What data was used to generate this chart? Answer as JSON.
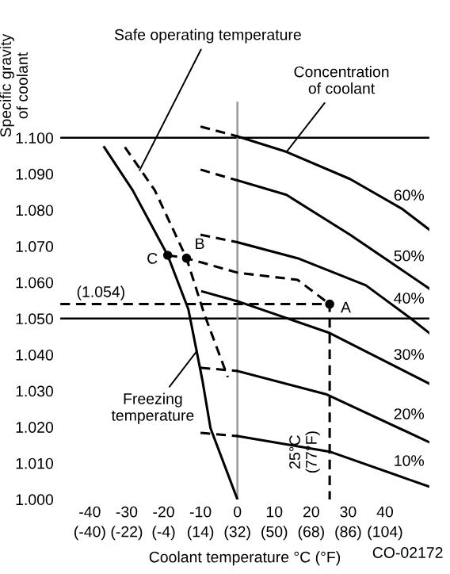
{
  "chart_data": {
    "type": "line",
    "xlabel": "Coolant temperature °C (°F)",
    "ylabel": "Specific gravity\nof coolant",
    "xlim": [
      -48,
      52
    ],
    "ylim": [
      1.0,
      1.11
    ],
    "xticks": [
      -40,
      -30,
      -20,
      -10,
      0,
      10,
      20,
      30,
      40
    ],
    "x2lim": [
      -54.4,
      125.6
    ],
    "x2ticks": [
      {
        "value": -40,
        "label": "(-40)"
      },
      {
        "value": -22,
        "label": "(-22)"
      },
      {
        "value": -4,
        "label": "(-4)"
      },
      {
        "value": 14,
        "label": "(14)"
      },
      {
        "value": 32,
        "label": "(32)"
      },
      {
        "value": 50,
        "label": "(50)"
      },
      {
        "value": 68,
        "label": "(68)"
      },
      {
        "value": 86,
        "label": "(86)"
      },
      {
        "value": 104,
        "label": "(104)"
      }
    ],
    "yticks": [
      {
        "value": 1.0,
        "label": "1.000"
      },
      {
        "value": 1.01,
        "label": "1.010"
      },
      {
        "value": 1.02,
        "label": "1.020"
      },
      {
        "value": 1.03,
        "label": "1.030"
      },
      {
        "value": 1.04,
        "label": "1.040"
      },
      {
        "value": 1.05,
        "label": "1.050"
      },
      {
        "value": 1.06,
        "label": "1.060"
      },
      {
        "value": 1.07,
        "label": "1.070"
      },
      {
        "value": 1.08,
        "label": "1.080"
      },
      {
        "value": 1.09,
        "label": "1.090"
      },
      {
        "value": 1.1,
        "label": "1.100"
      }
    ],
    "grid": false,
    "legend": false,
    "ref_lines": [
      {
        "axis": "y",
        "value": 1.1,
        "color": "#000000"
      },
      {
        "axis": "y",
        "value": 1.05,
        "color": "#000000"
      },
      {
        "axis": "x",
        "value": 0,
        "color": "#999999"
      }
    ],
    "series": [
      {
        "color": "#000000",
        "line_style": "dashed",
        "x": [
          -10,
          0
        ],
        "values": [
          1.1031,
          1.1004
        ]
      },
      {
        "name": "60%",
        "color": "#000000",
        "line_style": "solid",
        "x": [
          0,
          13.3,
          30.5,
          44.7,
          52
        ],
        "values": [
          1.1004,
          1.0961,
          1.0886,
          1.0803,
          1.0746
        ]
      },
      {
        "color": "#000000",
        "line_style": "dashed",
        "x": [
          -10,
          0
        ],
        "values": [
          1.0912,
          1.0882
        ]
      },
      {
        "name": "50%",
        "color": "#000000",
        "line_style": "solid",
        "x": [
          0,
          13.3,
          30.5,
          52
        ],
        "values": [
          1.0882,
          1.0842,
          1.0732,
          1.0583
        ]
      },
      {
        "color": "#000000",
        "line_style": "dashed",
        "x": [
          -10,
          0
        ],
        "values": [
          1.0732,
          1.0711
        ]
      },
      {
        "name": "40%",
        "color": "#000000",
        "line_style": "solid",
        "x": [
          0,
          16.3,
          34.8,
          46.5,
          52
        ],
        "values": [
          1.0711,
          1.0667,
          1.0592,
          1.0504,
          1.046
        ]
      },
      {
        "name": "30%",
        "color": "#000000",
        "line_style": "solid",
        "x": [
          -9.5,
          0,
          25,
          52
        ],
        "values": [
          1.0575,
          1.0548,
          1.046,
          1.032
        ]
      },
      {
        "color": "#000000",
        "line_style": "dashed",
        "x": [
          -10,
          0
        ],
        "values": [
          1.0364,
          1.0355
        ]
      },
      {
        "name": "20%",
        "color": "#000000",
        "line_style": "solid",
        "x": [
          0,
          24,
          52
        ],
        "values": [
          1.0355,
          1.0291,
          1.0158
        ]
      },
      {
        "color": "#000000",
        "line_style": "dashed",
        "x": [
          -10,
          0
        ],
        "values": [
          1.0184,
          1.0175
        ]
      },
      {
        "name": "10%",
        "color": "#000000",
        "line_style": "solid",
        "x": [
          0,
          25,
          52
        ],
        "values": [
          1.0175,
          1.0132,
          1.0035
        ]
      },
      {
        "color": "#000000",
        "line_style": "solid",
        "x": [
          -36.1,
          -28.4,
          -18.9,
          -13.3,
          -9.5,
          -7.3,
          0
        ],
        "values": [
          1.0974,
          1.0855,
          1.0675,
          1.0526,
          1.033,
          1.0197,
          1.0
        ]
      },
      {
        "color": "#000000",
        "line_style": "dashed",
        "x": [
          -30.5,
          -22.4,
          -13.8,
          -9.0,
          -2.6
        ],
        "values": [
          1.0974,
          1.0855,
          1.0667,
          1.0513,
          1.0338
        ]
      },
      {
        "color": "#000000",
        "line_style": "dashed",
        "x": [
          -18.9,
          -13.8,
          0,
          16.3,
          25
        ],
        "values": [
          1.0675,
          1.0667,
          1.0627,
          1.0607,
          1.054
        ]
      },
      {
        "color": "#000000",
        "line_style": "dashed",
        "x": [
          -48,
          25,
          25
        ],
        "values": [
          1.054,
          1.054,
          1.0
        ]
      },
      {
        "type": "scatter",
        "marker": "circle",
        "color": "#000000",
        "x": [
          25,
          -13.8,
          -18.9
        ],
        "values": [
          1.054,
          1.0667,
          1.0675
        ]
      }
    ],
    "annotations": [
      {
        "text": "Safe operating temperature",
        "x": -26.5,
        "y": 1.091
      },
      {
        "text": "Concentration\nof coolant",
        "x": 13.3,
        "y": 1.0961
      },
      {
        "text": "Freezing\ntemperature",
        "x": -11,
        "y": 1.041
      },
      {
        "text": "A",
        "x": 25,
        "y": 1.054
      },
      {
        "text": "B",
        "x": -13.8,
        "y": 1.0667
      },
      {
        "text": "C",
        "x": -18.9,
        "y": 1.0675
      },
      {
        "text": "(1.054)",
        "x": -37,
        "y": 1.054
      },
      {
        "text": "25°C\n(77°F)",
        "x": 25,
        "y": 1.0
      },
      "CO-02172"
    ]
  }
}
